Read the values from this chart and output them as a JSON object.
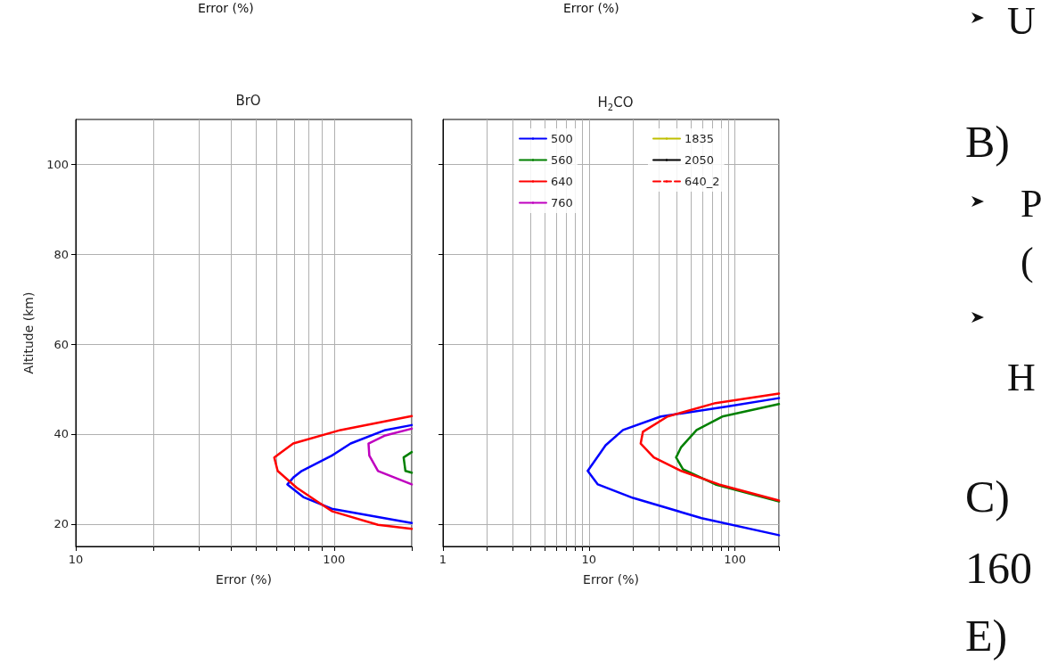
{
  "chart_data": [
    {
      "type": "line",
      "title": "BrO",
      "xlabel": "Error (%)",
      "ylabel": "Altitude (km)",
      "log": "x",
      "grid": true,
      "legend": false,
      "marker": "none",
      "line_style": "solid",
      "xlim": [
        10,
        200
      ],
      "xticks": [
        10,
        {
          "value": 20,
          "label": null
        },
        {
          "value": 30,
          "label": null
        },
        {
          "value": 40,
          "label": null
        },
        {
          "value": 50,
          "label": null
        },
        {
          "value": 60,
          "label": null
        },
        {
          "value": 70,
          "label": null
        },
        {
          "value": 80,
          "label": null
        },
        {
          "value": 90,
          "label": null
        },
        100,
        {
          "value": 200,
          "label": null
        }
      ],
      "ylim": [
        15,
        110
      ],
      "yticks": [
        20,
        40,
        60,
        80,
        100
      ],
      "series": [
        {
          "color": "#0000ff",
          "x": [
            200,
            158,
            116,
            98,
            75,
            69.5,
            66,
            76,
            98,
            200
          ],
          "values": [
            42.0,
            40.9,
            37.9,
            35.2,
            31.8,
            30.3,
            28.8,
            26.0,
            23.4,
            20.2
          ]
        },
        {
          "color": "#008000",
          "x": [
            200,
            186,
            189,
            200
          ],
          "values": [
            36.0,
            34.8,
            31.8,
            31.4
          ]
        },
        {
          "color": "#ff0000",
          "x": [
            200,
            106,
            69.5,
            58.7,
            60.5,
            71.6,
            86,
            98.5,
            148,
            200
          ],
          "values": [
            44.0,
            40.9,
            37.9,
            34.8,
            31.8,
            28.1,
            25.0,
            22.8,
            19.8,
            18.9
          ]
        },
        {
          "color": "#bf00bf",
          "x": [
            200,
            158,
            136,
            137,
            148,
            200
          ],
          "values": [
            41.2,
            39.7,
            37.9,
            35.2,
            31.8,
            28.8
          ]
        }
      ]
    },
    {
      "type": "line",
      "title": "H$_{2}$CO",
      "xlabel": "Error (%)",
      "log": "x",
      "grid": true,
      "legend": "top right",
      "marker": "none",
      "line_style": "solid",
      "tick_labels": "x",
      "xlim": [
        1,
        200
      ],
      "xticks": [
        1,
        {
          "value": 2,
          "label": null
        },
        {
          "value": 3,
          "label": null
        },
        {
          "value": 4,
          "label": null
        },
        {
          "value": 5,
          "label": null
        },
        {
          "value": 6,
          "label": null
        },
        {
          "value": 7,
          "label": null
        },
        {
          "value": 8,
          "label": null
        },
        {
          "value": 9,
          "label": null
        },
        10,
        {
          "value": 20,
          "label": null
        },
        {
          "value": 30,
          "label": null
        },
        {
          "value": 40,
          "label": null
        },
        {
          "value": 50,
          "label": null
        },
        {
          "value": 60,
          "label": null
        },
        {
          "value": 70,
          "label": null
        },
        {
          "value": 80,
          "label": null
        },
        {
          "value": 90,
          "label": null
        },
        100,
        {
          "value": 200,
          "label": null
        }
      ],
      "ylim": [
        15,
        110
      ],
      "yticks": [
        20,
        40,
        60,
        80,
        100
      ],
      "series": [
        {
          "name": "500",
          "color": "#0000ff",
          "x": [
            200,
            86.5,
            31,
            17.1,
            13,
            9.8,
            11.5,
            20,
            59,
            200
          ],
          "values": [
            48.0,
            46.1,
            43.9,
            40.9,
            37.5,
            31.8,
            28.8,
            25.8,
            21.3,
            17.5
          ]
        },
        {
          "name": "560",
          "color": "#008000",
          "x": [
            200,
            81.8,
            54.6,
            42.8,
            39.5,
            44,
            73.5,
            200
          ],
          "values": [
            46.7,
            43.9,
            40.9,
            37.1,
            34.8,
            32.2,
            28.8,
            25.0
          ]
        },
        {
          "name": "640",
          "color": "#ff0000",
          "x": [
            200,
            73.5,
            34.5,
            23.4,
            22.6,
            27.8,
            42.8,
            77.6,
            200
          ],
          "values": [
            49.0,
            46.9,
            43.9,
            40.5,
            37.9,
            34.8,
            31.8,
            28.8,
            25.2
          ]
        },
        {
          "name": "760",
          "color": "#bf00bf"
        },
        {
          "name": "1835",
          "color": "#bfbf00"
        },
        {
          "name": "2050",
          "color": "#000000"
        },
        {
          "name": "640_2",
          "color": "#ff0000",
          "line_style": "dashed"
        }
      ]
    },
    {
      "type": "other",
      "annotations": [
        "Error (%)",
        "Error (%)",
        "U",
        "B)",
        "P",
        "(",
        "H",
        "C)",
        "160",
        "E)"
      ]
    }
  ]
}
